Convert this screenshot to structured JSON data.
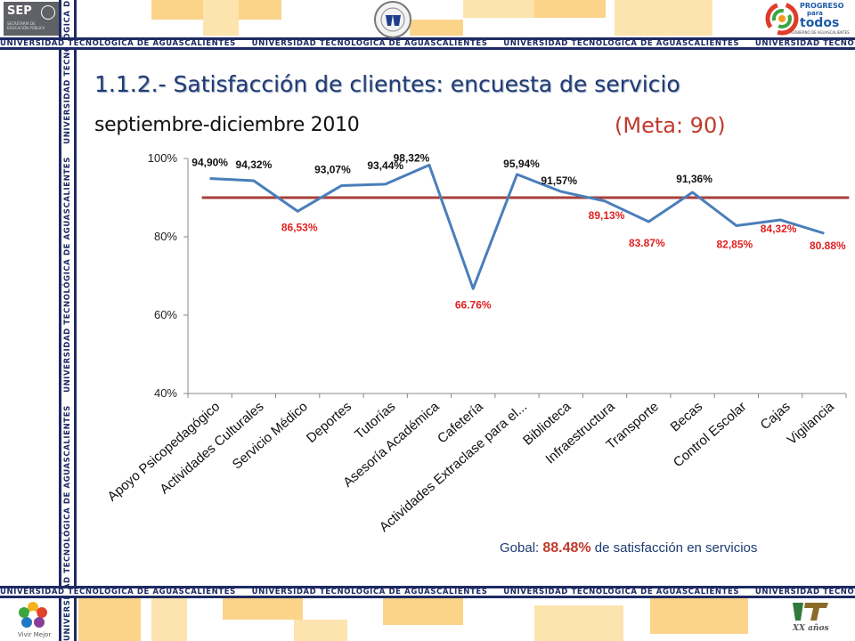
{
  "band_text": "UNIVERSIDAD TECNOLÓGICA DE AGUASCALIENTES",
  "logos": {
    "sep_text": "SEP",
    "sep_sub": "SECRETARÍA DE EDUCACIÓN PÚBLICA",
    "progreso_line1": "PROGRESO",
    "progreso_line2": "para",
    "progreso_line3": "todos",
    "progreso_sub": "GOBIERNO DE AGUASCALIENTES",
    "vivir_mejor": "Vivir Mejor",
    "ut_bottom_text": "XX años"
  },
  "title": "1.1.2.- Satisfacción de clientes: encuesta de servicio",
  "subtitle": "septiembre-diciembre 2010",
  "goal_text": "(Meta: 90)",
  "global_summary": {
    "prefix": "Gobal: ",
    "value": "88.48%",
    "suffix": " de satisfacción en servicios"
  },
  "colors": {
    "line": "#4a7ebb",
    "goal_line": "#a6403b",
    "label_red": "#e02020",
    "label_black": "#111111",
    "navy": "#1d2a63",
    "yellow": "#fbd48a"
  },
  "chart_data": {
    "type": "line",
    "categories": [
      "Apoyo Psicopedagógico",
      "Actividades Culturales",
      "Servicio Médico",
      "Deportes",
      "Tutorías",
      "Asesoría Académica",
      "Cafetería",
      "Actividades Extraclase para el...",
      "Biblioteca",
      "Infraestructura",
      "Transporte",
      "Becas",
      "Control Escolar",
      "Cajas",
      "Vigilancia"
    ],
    "values": [
      94.9,
      94.32,
      86.53,
      93.07,
      93.44,
      98.32,
      66.76,
      95.94,
      91.57,
      89.13,
      83.87,
      91.36,
      82.85,
      84.32,
      80.88
    ],
    "data_labels": [
      "94,90%",
      "94,32%",
      "86,53%",
      "93,07%",
      "93,44%",
      "98,32%",
      "66.76%",
      "95,94%",
      "91,57%",
      "89,13%",
      "83.87%",
      "91,36%",
      "82,85%",
      "84,32%",
      "80.88%"
    ],
    "goal": 90,
    "ylim": [
      40,
      100
    ],
    "yticks": [
      "40%",
      "60%",
      "80%",
      "100%"
    ],
    "ytick_values": [
      40,
      60,
      80,
      100
    ],
    "grid": false,
    "legend": "none"
  }
}
